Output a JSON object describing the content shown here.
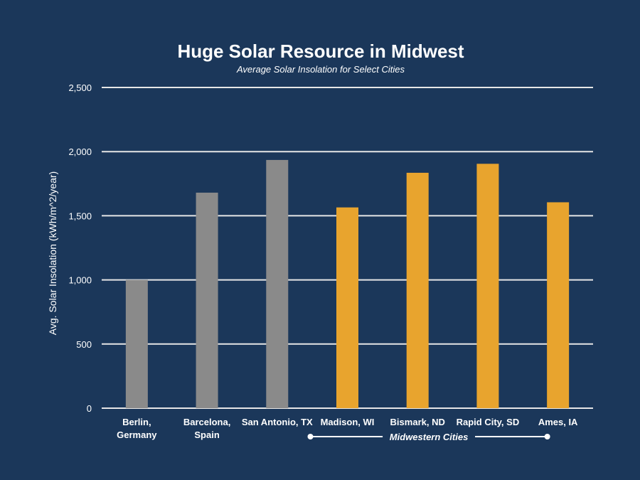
{
  "chart_data": {
    "type": "bar",
    "title": "Huge Solar Resource in Midwest",
    "subtitle": "Average Solar Insolation for Select Cities",
    "ylabel": "Avg. Solar Insolation (kWh/m^2/year)",
    "xlabel": "",
    "ylim": [
      0,
      2500
    ],
    "yticks": [
      0,
      500,
      1000,
      1500,
      2000,
      2500
    ],
    "ytick_labels": [
      "0",
      "500",
      "1,000",
      "1,500",
      "2,000",
      "2,500"
    ],
    "grid": true,
    "categories": [
      [
        "Berlin,",
        "Germany"
      ],
      [
        "Barcelona,",
        "Spain"
      ],
      [
        "San Antonio, TX"
      ],
      [
        "Madison, WI"
      ],
      [
        "Bismark, ND"
      ],
      [
        "Rapid City, SD"
      ],
      [
        "Ames, IA"
      ]
    ],
    "values": [
      1000,
      1680,
      1935,
      1565,
      1835,
      1905,
      1605
    ],
    "bar_colors": [
      "#8a8a8a",
      "#8a8a8a",
      "#8a8a8a",
      "#e8a42e",
      "#e8a42e",
      "#e8a42e",
      "#e8a42e"
    ],
    "group_annotation": {
      "label": "Midwestern Cities",
      "from_category": 3,
      "to_category": 6
    }
  },
  "colors": {
    "background": "#1b375a",
    "gridline": "#e6e6e6",
    "text": "#ffffff",
    "other_cities": "#8a8a8a",
    "midwest_cities": "#e8a42e"
  }
}
